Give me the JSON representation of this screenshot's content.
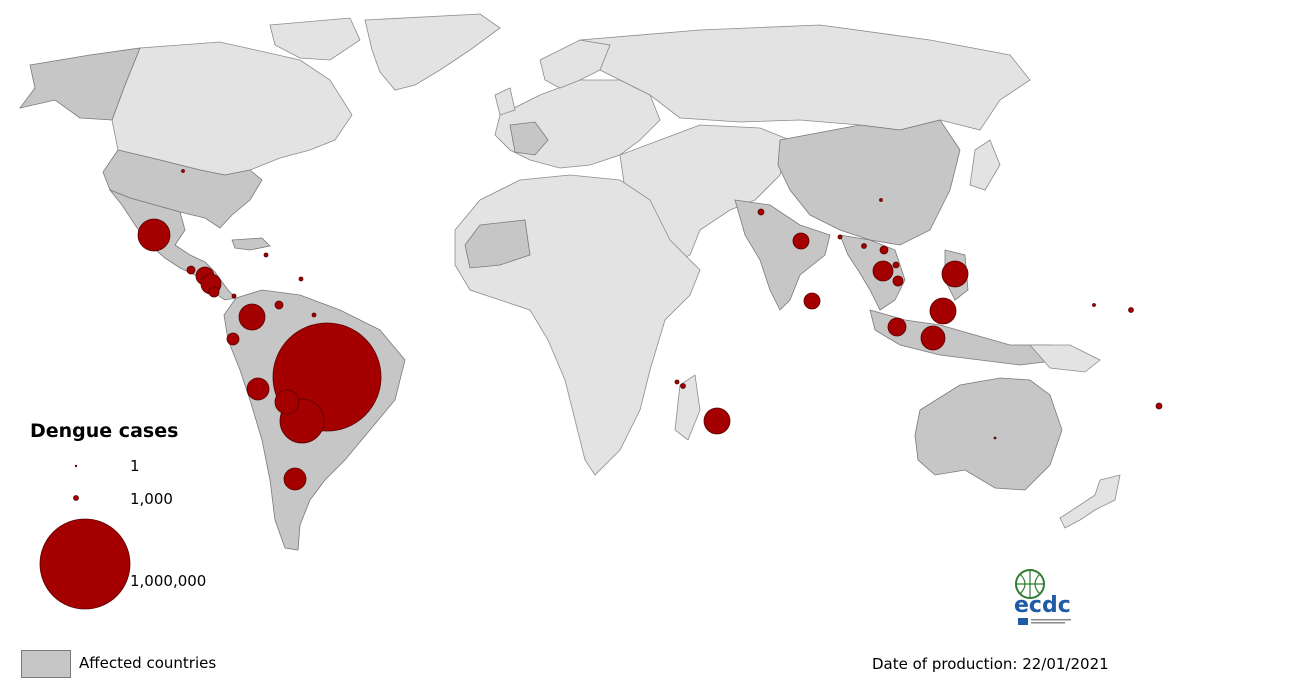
{
  "map": {
    "legend": {
      "title": "Dengue cases",
      "sizes": [
        {
          "value": 1,
          "label": "1"
        },
        {
          "value": 1000,
          "label": "1,000"
        },
        {
          "value": 1000000,
          "label": "1,000,000"
        }
      ],
      "affected_label": "Affected countries"
    },
    "production_date": "Date of production: 22/01/2021",
    "colors": {
      "bubble": "#a50000",
      "affected": "#c6c6c6",
      "unaffected": "#e3e3e3"
    },
    "logo": {
      "text": "ecdc"
    }
  }
}
